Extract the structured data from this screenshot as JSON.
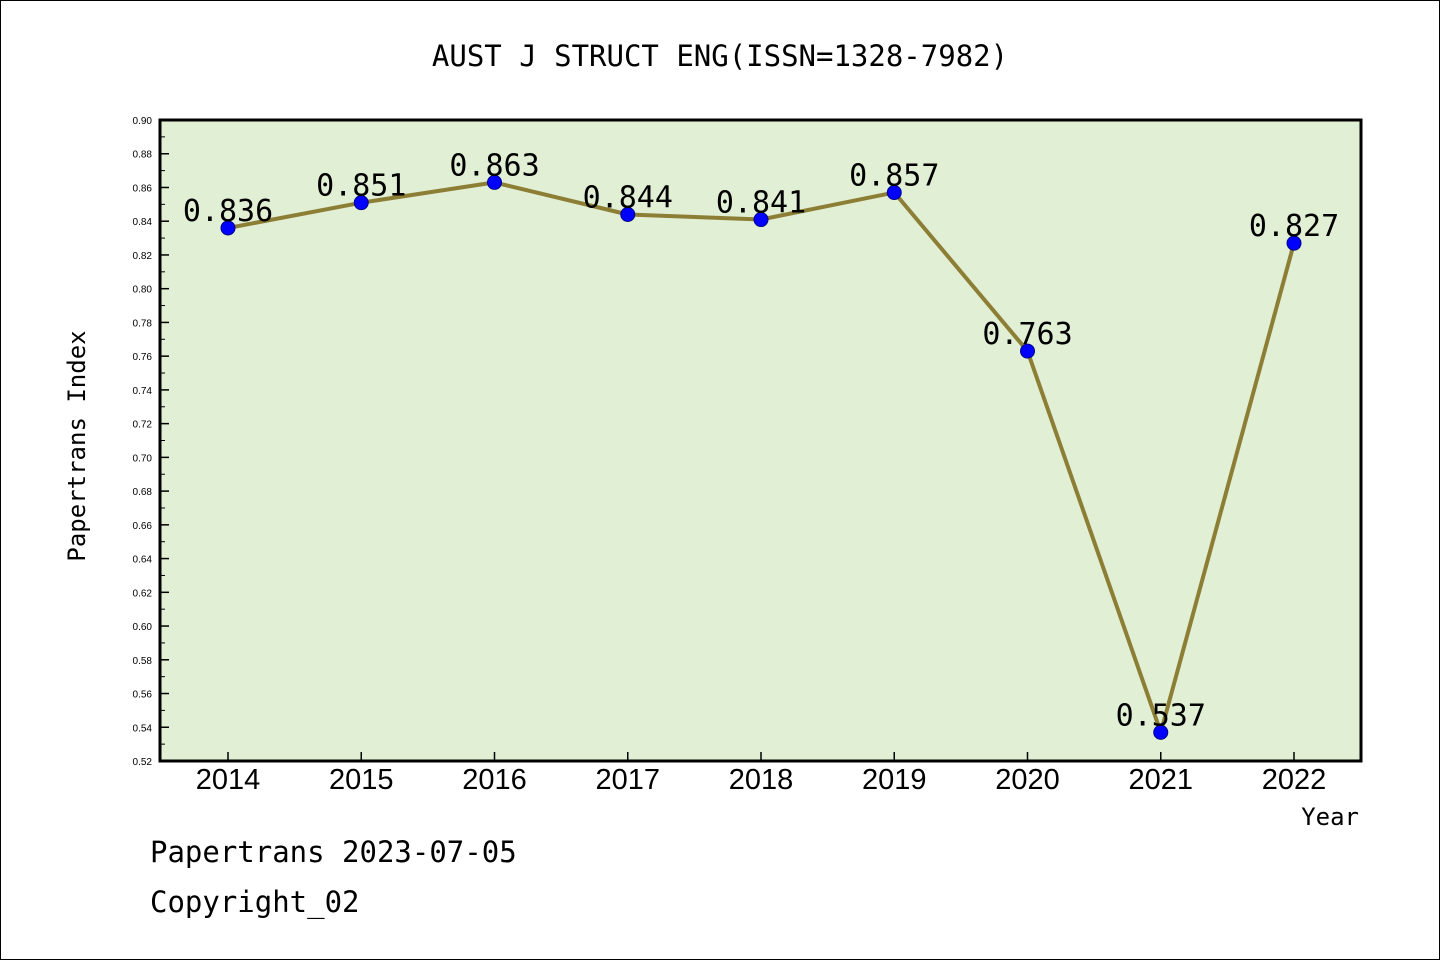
{
  "colors": {
    "plot_background": "#e1efd5",
    "line": "#8c7f35",
    "marker": "#0000ff",
    "marker_outline": "#00008b",
    "text": "#000000"
  },
  "footer": {
    "line1": "Papertrans 2023-07-05",
    "line2": "Copyright_02"
  },
  "chart_data": {
    "type": "line",
    "title": "AUST J STRUCT ENG(ISSN=1328-7982)",
    "xlabel": "Year",
    "ylabel": "Papertrans Index",
    "categories": [
      "2014",
      "2015",
      "2016",
      "2017",
      "2018",
      "2019",
      "2020",
      "2021",
      "2022"
    ],
    "series": [
      {
        "values": [
          0.836,
          0.851,
          0.863,
          0.844,
          0.841,
          0.857,
          0.763,
          0.537,
          0.827
        ],
        "labels": [
          "0.836",
          "0.851",
          "0.863",
          "0.844",
          "0.841",
          "0.857",
          "0.763",
          "0.537",
          "0.827"
        ]
      }
    ],
    "ylim": [
      0.52,
      0.9
    ],
    "yticks": [
      "0.52",
      "0.54",
      "0.56",
      "0.58",
      "0.60",
      "0.62",
      "0.64",
      "0.66",
      "0.68",
      "0.70",
      "0.72",
      "0.74",
      "0.76",
      "0.78",
      "0.80",
      "0.82",
      "0.84",
      "0.86",
      "0.88",
      "0.90"
    ],
    "grid": false,
    "legend": "none"
  }
}
